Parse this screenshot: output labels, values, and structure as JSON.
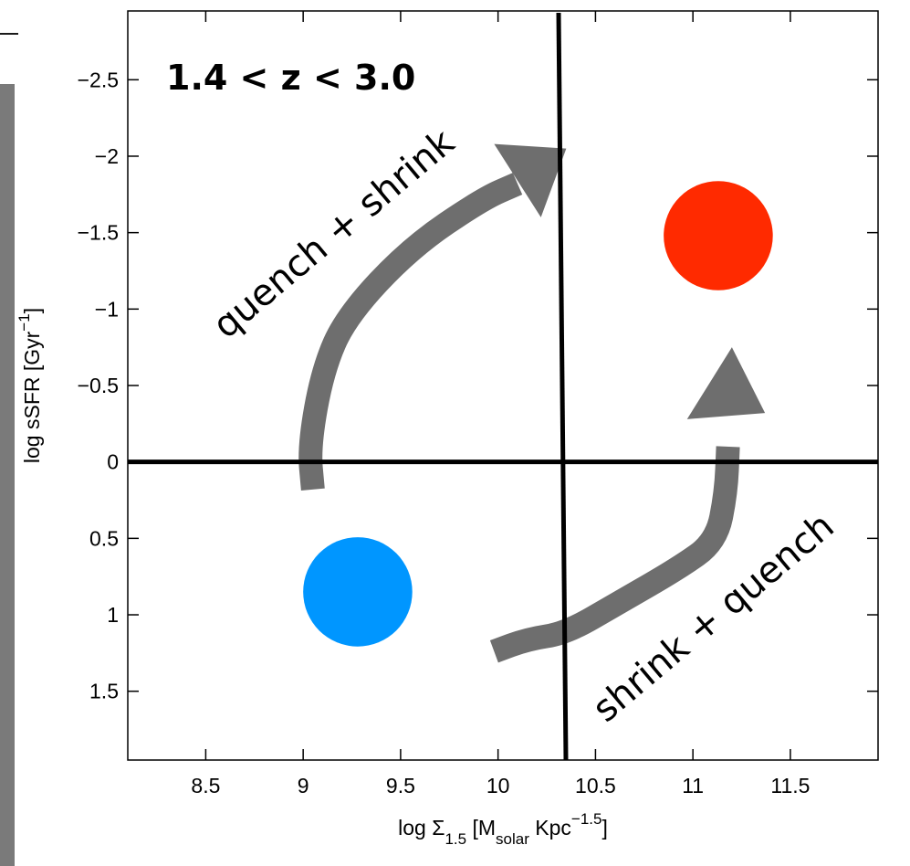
{
  "chart_data": {
    "type": "scatter",
    "title": "1.4 < z < 3.0",
    "xlabel": {
      "prefix": "log Σ",
      "sub1": "1.5",
      "mid": " [M",
      "sub2": "solar",
      "mid2": " Kpc",
      "sup": "−1.5",
      "suffix": "]"
    },
    "ylabel": {
      "prefix": "log sSFR [Gyr",
      "sup": "−1",
      "suffix": "]"
    },
    "xlim": [
      8.1,
      11.95
    ],
    "ylim": [
      1.95,
      -2.95
    ],
    "y_inverted": true,
    "xticks": [
      {
        "value": 8.5,
        "label": "8.5"
      },
      {
        "value": 9,
        "label": "9"
      },
      {
        "value": 9.5,
        "label": "9.5"
      },
      {
        "value": 10,
        "label": "10"
      },
      {
        "value": 10.5,
        "label": "10.5"
      },
      {
        "value": 11,
        "label": "11"
      },
      {
        "value": 11.5,
        "label": "11.5"
      }
    ],
    "yticks": [
      {
        "value": -2.5,
        "label": "−2.5"
      },
      {
        "value": -2,
        "label": "−2"
      },
      {
        "value": -1.5,
        "label": "−1.5"
      },
      {
        "value": -1,
        "label": "−1"
      },
      {
        "value": -0.5,
        "label": "−0.5"
      },
      {
        "value": 0,
        "label": "0"
      },
      {
        "value": 0.5,
        "label": "0.5"
      },
      {
        "value": 1,
        "label": "1"
      },
      {
        "value": 1.5,
        "label": "1.5"
      }
    ],
    "divider_lines": {
      "x": 10.32,
      "y": 0.0
    },
    "points": [
      {
        "x": 9.28,
        "y": 0.85,
        "radius_x": 0.28,
        "color": "#0096ff"
      },
      {
        "x": 11.13,
        "y": -1.48,
        "radius_x": 0.28,
        "color": "#ff2a00"
      }
    ],
    "arrows": [
      {
        "label": "quench + shrink",
        "color": "#6e6e6e",
        "path": [
          [
            9.05,
            0.18
          ],
          [
            9.03,
            -0.1
          ],
          [
            9.1,
            -0.6
          ],
          [
            9.22,
            -0.95
          ],
          [
            9.55,
            -1.4
          ],
          [
            9.92,
            -1.72
          ],
          [
            10.1,
            -1.82
          ]
        ],
        "head": {
          "tip": [
            10.35,
            -2.05
          ],
          "left": [
            9.98,
            -2.08
          ],
          "right": [
            10.22,
            -1.6
          ]
        }
      },
      {
        "label": "shrink + quench",
        "color": "#6e6e6e",
        "path": [
          [
            9.98,
            1.24
          ],
          [
            10.15,
            1.16
          ],
          [
            10.35,
            1.12
          ],
          [
            10.62,
            0.92
          ],
          [
            10.92,
            0.7
          ],
          [
            11.12,
            0.52
          ],
          [
            11.17,
            0.2
          ],
          [
            11.18,
            -0.1
          ]
        ],
        "head": {
          "tip": [
            11.2,
            -0.75
          ],
          "left": [
            10.97,
            -0.28
          ],
          "right": [
            11.37,
            -0.32
          ]
        }
      }
    ]
  }
}
